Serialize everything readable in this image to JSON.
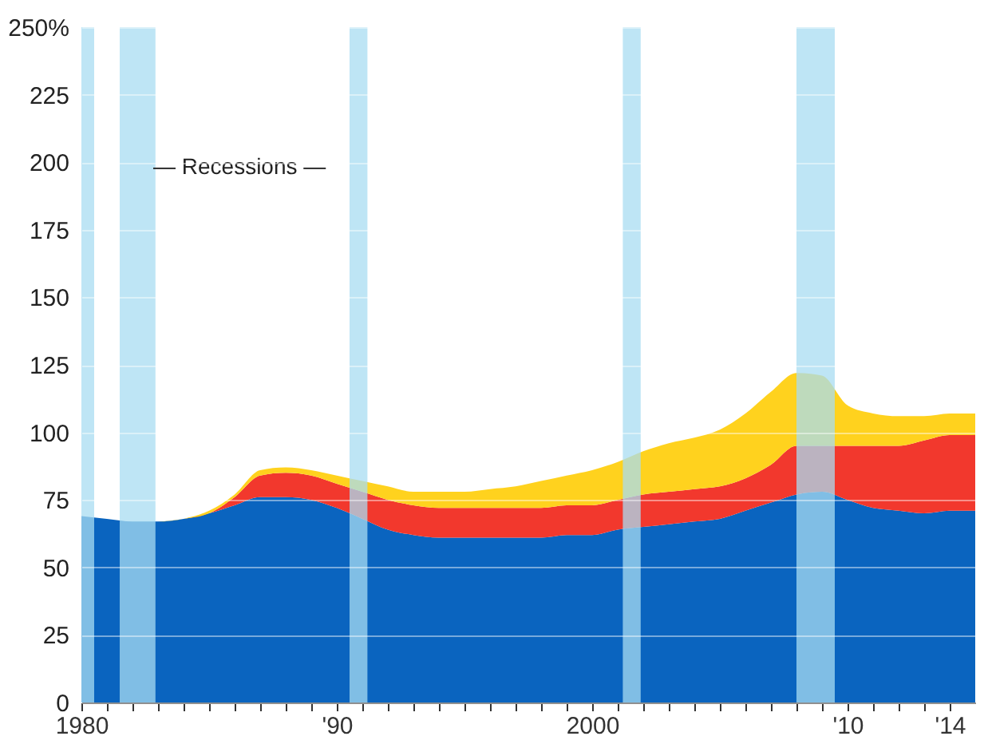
{
  "chart_data": {
    "type": "area",
    "stacked": true,
    "x": [
      1980,
      1981,
      1982,
      1983,
      1984,
      1985,
      1986,
      1987,
      1988,
      1989,
      1990,
      1991,
      1992,
      1993,
      1994,
      1995,
      1996,
      1997,
      1998,
      1999,
      2000,
      2001,
      2002,
      2003,
      2004,
      2005,
      2006,
      2007,
      2008,
      2009,
      2010,
      2011,
      2012,
      2013,
      2014,
      2015
    ],
    "series": [
      {
        "color": "#0a64bf",
        "values": [
          69,
          68,
          67,
          67,
          68,
          70,
          73,
          76,
          76,
          75,
          72,
          68,
          64,
          62,
          61,
          61,
          61,
          61,
          61,
          62,
          62,
          64,
          65,
          66,
          67,
          68,
          71,
          74,
          77,
          78,
          75,
          72,
          71,
          70,
          71,
          71
        ]
      },
      {
        "color": "#f2382d",
        "values": [
          0,
          0,
          0,
          0,
          0,
          0,
          3,
          8,
          9,
          9,
          9,
          10,
          11,
          11,
          11,
          11,
          11,
          11,
          11,
          11,
          11,
          11,
          12,
          12,
          12,
          12,
          12,
          14,
          18,
          17,
          20,
          23,
          24,
          27,
          28,
          28
        ]
      },
      {
        "color": "#ffd21e",
        "values": [
          0,
          0,
          0,
          0,
          0,
          1,
          1,
          2,
          2,
          2,
          3,
          4,
          5,
          5,
          6,
          6,
          7,
          8,
          10,
          11,
          13,
          14,
          16,
          18,
          19,
          21,
          24,
          27,
          27,
          26,
          15,
          12,
          11,
          9,
          8,
          8
        ]
      }
    ],
    "xlim": [
      1980,
      2015
    ],
    "xticks": [
      1980,
      {
        "value": 1981,
        "label": null
      },
      {
        "value": 1982,
        "label": null
      },
      {
        "value": 1983,
        "label": null
      },
      {
        "value": 1984,
        "label": null
      },
      {
        "value": 1985,
        "label": null
      },
      {
        "value": 1986,
        "label": null
      },
      {
        "value": 1987,
        "label": null
      },
      {
        "value": 1988,
        "label": null
      },
      {
        "value": 1989,
        "label": null
      },
      {
        "value": 1990,
        "label": "'90"
      },
      {
        "value": 1991,
        "label": null
      },
      {
        "value": 1992,
        "label": null
      },
      {
        "value": 1993,
        "label": null
      },
      {
        "value": 1994,
        "label": null
      },
      {
        "value": 1995,
        "label": null
      },
      {
        "value": 1996,
        "label": null
      },
      {
        "value": 1997,
        "label": null
      },
      {
        "value": 1998,
        "label": null
      },
      {
        "value": 1999,
        "label": null
      },
      2000,
      {
        "value": 2001,
        "label": null
      },
      {
        "value": 2002,
        "label": null
      },
      {
        "value": 2003,
        "label": null
      },
      {
        "value": 2004,
        "label": null
      },
      {
        "value": 2005,
        "label": null
      },
      {
        "value": 2006,
        "label": null
      },
      {
        "value": 2007,
        "label": null
      },
      {
        "value": 2008,
        "label": null
      },
      {
        "value": 2009,
        "label": null
      },
      {
        "value": 2010,
        "label": "'10"
      },
      {
        "value": 2011,
        "label": null
      },
      {
        "value": 2012,
        "label": null
      },
      {
        "value": 2013,
        "label": null
      },
      {
        "value": 2014,
        "label": "'14"
      }
    ],
    "ylim": [
      0,
      250
    ],
    "yticks": [
      0,
      25,
      50,
      75,
      100,
      125,
      150,
      175,
      200,
      225,
      {
        "value": 250,
        "label": "250%"
      }
    ],
    "grid": "y",
    "bands": [
      {
        "axis": "x",
        "from": 1980.0,
        "to": 1980.5,
        "color": "#a8dcf2"
      },
      {
        "axis": "x",
        "from": 1981.5,
        "to": 1982.9,
        "color": "#a8dcf2"
      },
      {
        "axis": "x",
        "from": 1990.5,
        "to": 1991.2,
        "color": "#a8dcf2"
      },
      {
        "axis": "x",
        "from": 2001.2,
        "to": 2001.9,
        "color": "#a8dcf2"
      },
      {
        "axis": "x",
        "from": 2008.0,
        "to": 2009.5,
        "color": "#a8dcf2"
      }
    ],
    "annotations": [
      "— Recessions —"
    ],
    "legend": false
  }
}
